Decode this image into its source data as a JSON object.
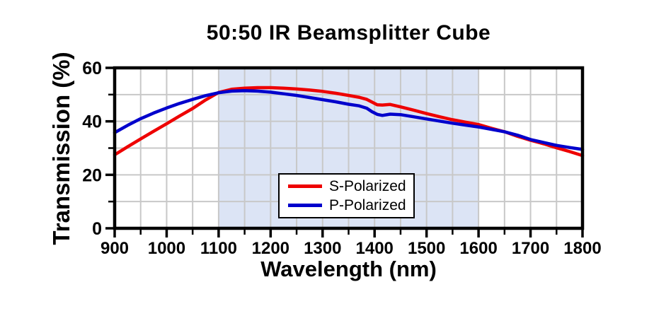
{
  "chart_data": {
    "type": "line",
    "title": "50:50 IR Beamsplitter Cube",
    "xlabel": "Wavelength (nm)",
    "ylabel": "Transmission (%)",
    "xlim": [
      900,
      1800
    ],
    "ylim": [
      0,
      60
    ],
    "x_major_ticks": [
      900,
      1000,
      1100,
      1200,
      1300,
      1400,
      1500,
      1600,
      1700,
      1800
    ],
    "x_minor_ticks": [
      950,
      1050,
      1150,
      1250,
      1350,
      1450,
      1550,
      1650,
      1750
    ],
    "y_major_ticks": [
      0,
      20,
      40,
      60
    ],
    "y_minor_ticks": [
      10,
      30,
      50
    ],
    "grid": true,
    "grid_color": "#c8c8c8",
    "axis_color": "#000000",
    "shaded_region": {
      "from": 1100,
      "to": 1600,
      "color": "#dce4f5"
    },
    "legend_position": "bottom-center-inside",
    "x": [
      900,
      925,
      950,
      975,
      1000,
      1025,
      1050,
      1075,
      1100,
      1125,
      1150,
      1175,
      1200,
      1225,
      1250,
      1275,
      1300,
      1325,
      1350,
      1370,
      1385,
      1395,
      1405,
      1415,
      1430,
      1450,
      1475,
      1500,
      1525,
      1550,
      1575,
      1600,
      1625,
      1650,
      1675,
      1700,
      1725,
      1750,
      1775,
      1800
    ],
    "series": [
      {
        "name": "S-Polarized",
        "color": "#ee0000",
        "values": [
          27.5,
          30.5,
          33.4,
          36.3,
          39.1,
          42.0,
          44.8,
          48.0,
          50.8,
          52.0,
          52.4,
          52.6,
          52.6,
          52.4,
          52.1,
          51.7,
          51.2,
          50.5,
          49.7,
          49.0,
          48.2,
          47.2,
          46.2,
          46.1,
          46.3,
          45.4,
          44.2,
          42.9,
          41.7,
          40.6,
          39.7,
          38.8,
          37.4,
          36.1,
          34.4,
          32.9,
          31.6,
          30.1,
          28.7,
          27.2
        ]
      },
      {
        "name": "P-Polarized",
        "color": "#0000cc",
        "values": [
          35.8,
          38.5,
          41.0,
          43.1,
          45.0,
          46.7,
          48.2,
          49.6,
          50.7,
          51.3,
          51.5,
          51.3,
          50.9,
          50.3,
          49.7,
          48.9,
          48.1,
          47.3,
          46.4,
          45.8,
          44.9,
          43.6,
          42.6,
          42.2,
          42.7,
          42.5,
          41.7,
          40.9,
          40.1,
          39.3,
          38.6,
          37.9,
          37.0,
          36.1,
          34.8,
          33.2,
          32.1,
          31.0,
          30.2,
          29.5
        ]
      }
    ]
  }
}
